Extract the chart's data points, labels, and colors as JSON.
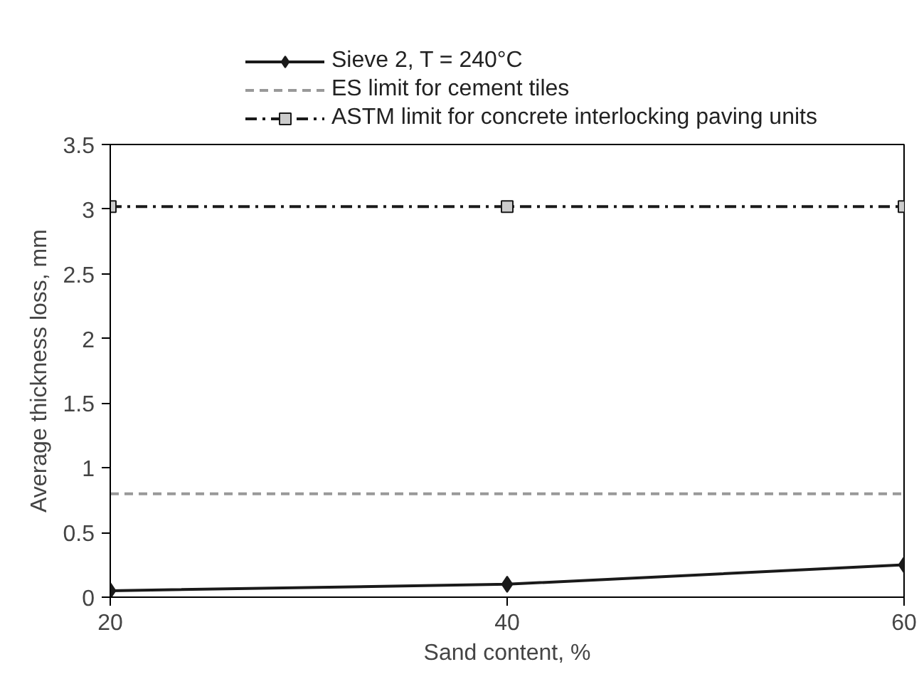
{
  "chart_data": {
    "type": "line",
    "xlabel": "Sand content, %",
    "ylabel": "Average thickness loss, mm",
    "x": [
      20,
      40,
      60
    ],
    "xlim": [
      20,
      60
    ],
    "xticks": [
      20,
      40,
      60
    ],
    "ylim": [
      0,
      3.5
    ],
    "yticks": [
      0,
      0.5,
      1,
      1.5,
      2,
      2.5,
      3,
      3.5
    ],
    "series": [
      {
        "name": "Sieve 2, T = 240°C",
        "color": "#1a1a1a",
        "values": [
          0.05,
          0.1,
          0.25
        ],
        "marker": "diamond",
        "line_style": "solid"
      },
      {
        "name": "ES limit for cement tiles",
        "color": "#999999",
        "values": [
          0.8,
          0.8,
          0.8
        ],
        "marker": "none",
        "line_style": "dashed"
      },
      {
        "name": "ASTM limit for concrete interlocking paving units",
        "color": "#1a1a1a",
        "values": [
          3.02,
          3.02,
          3.02
        ],
        "marker": "square",
        "line_style": "dashdot"
      }
    ],
    "grid": false,
    "legend": "top"
  }
}
